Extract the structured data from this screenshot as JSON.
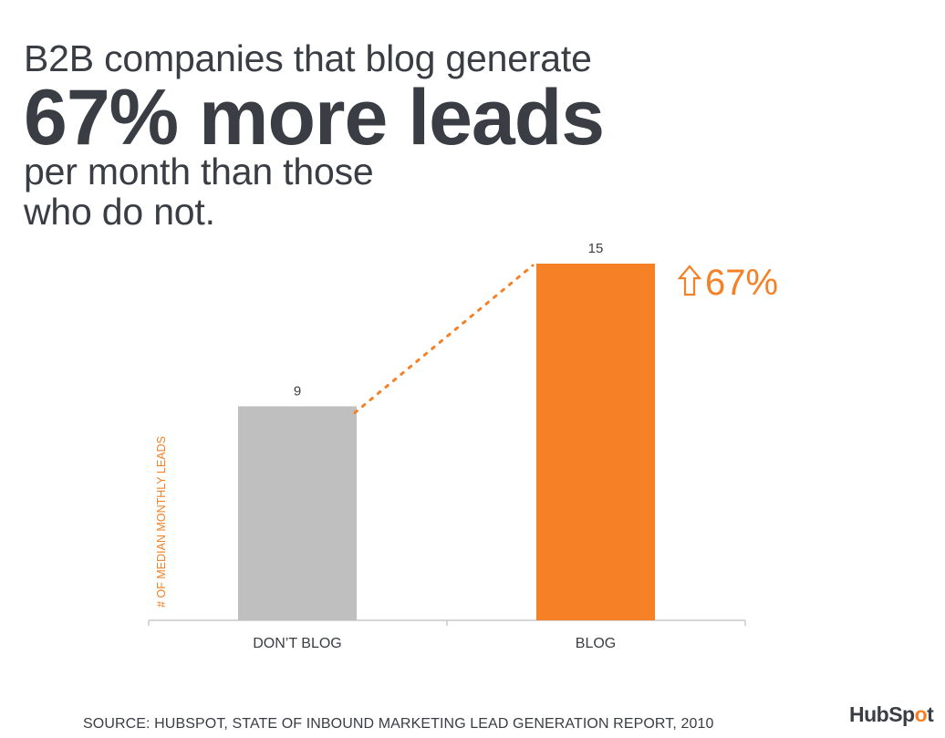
{
  "headline": {
    "line1": "B2B companies that blog generate",
    "line2": "67% more leads",
    "line3": "per month than those",
    "line4": "who do not."
  },
  "chart_data": {
    "type": "bar",
    "categories": [
      "DON’T BLOG",
      "BLOG"
    ],
    "values": [
      9,
      15
    ],
    "data_labels": [
      "9",
      "15"
    ],
    "bar_colors": [
      "#bfbfbf",
      "#f58025"
    ],
    "ylabel": "# OF MEDIAN MONTHLY LEADS",
    "ylim": [
      0,
      15
    ],
    "grid": false,
    "annotation": {
      "text": "67%",
      "icon": "up-arrow-icon",
      "color": "#f58025",
      "connector": "dotted"
    }
  },
  "footer": {
    "source": "SOURCE: HUBSPOT, STATE OF INBOUND MARKETING LEAD GENERATION REPORT, 2010",
    "logo_prefix": "HubSp",
    "logo_o": "o",
    "logo_suffix": "t"
  },
  "colors": {
    "text": "#3a3d44",
    "accent": "#f58025",
    "bar_gray": "#bfbfbf"
  }
}
